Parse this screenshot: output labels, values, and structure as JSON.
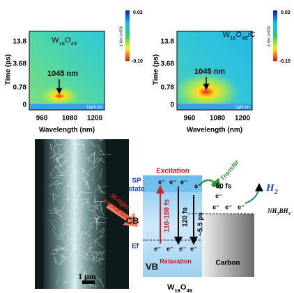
{
  "panels": [
    {
      "title": "W18O49",
      "y_axis_label": "Time (ps)",
      "x_axis_label": "Wavelength (nm)",
      "y_ticks": [
        "13.8",
        "3.68",
        "0.78",
        "0"
      ],
      "x_ticks": [
        "960",
        "1080",
        "1200"
      ],
      "annotation": "1045 nm",
      "light_label": "Light on",
      "colorbar": {
        "label": "Δ Abs (mOD)",
        "max": "0.02",
        "min": "-0.10"
      }
    },
    {
      "title": "W18O49/C",
      "y_axis_label": "Time (ps)",
      "x_axis_label": "Wavelength (nm)",
      "y_ticks": [
        "13.8",
        "3.68",
        "0.78",
        "0"
      ],
      "x_ticks": [
        "960",
        "1080",
        "1200"
      ],
      "annotation": "1045 nm",
      "light_label": "Light on",
      "colorbar": {
        "label": "Δ Abs (mOD)",
        "max": "0.02",
        "min": "-0.10"
      }
    }
  ],
  "micrograph": {
    "scale_bar": "1 μm"
  },
  "diagram": {
    "excitation": "Excitation",
    "sp_state": [
      "SP",
      "state"
    ],
    "ir_light": [
      "IR-light",
      "excitation"
    ],
    "transfer": "Transfer",
    "transfer_time": "~50 fs",
    "h2": "H2",
    "ammonia_borane": "NH3BH3",
    "cb": "CB",
    "ef": "Ef",
    "vb": "VB",
    "relaxation": "Relaxation",
    "carbon": "Carbon",
    "time_1": "110-180 fs",
    "time_2": "120 fs",
    "time_3": "~5.5 ps",
    "material": "W18O49",
    "electrons_top": [
      "e⁻",
      "e⁻",
      "e⁻",
      "e⁻"
    ],
    "electrons_carbon": [
      "e⁻",
      "e⁻",
      "e⁻"
    ],
    "electrons_bottom": [
      "e⁻",
      "e⁻",
      "e⁻",
      "e⁻"
    ],
    "electron_mid": "e⁻"
  }
}
